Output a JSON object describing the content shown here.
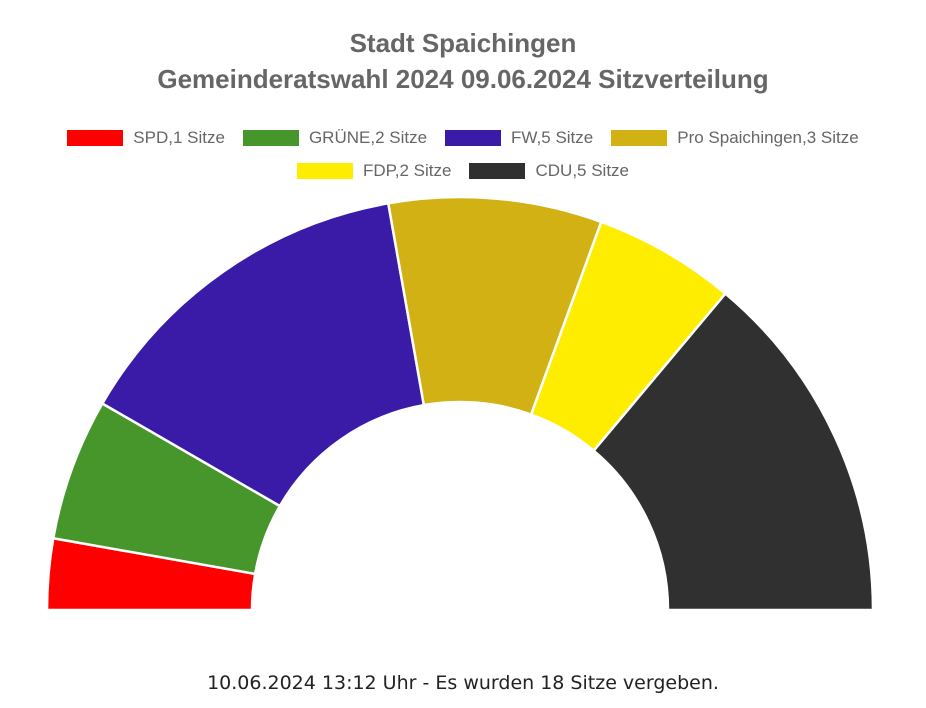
{
  "chart_data": {
    "type": "pie",
    "subtype": "semicircle-parliament",
    "title": "Stadt Spaichingen",
    "subtitle": "Gemeinderatswahl 2024 09.06.2024 Sitzverteilung",
    "legend_position": "top",
    "total_seats": 18,
    "series": [
      {
        "name": "SPD",
        "value": 1,
        "label": "SPD,1 Sitze",
        "color": "#ff0000"
      },
      {
        "name": "GRÜNE",
        "value": 2,
        "label": "GRÜNE,2 Sitze",
        "color": "#46962b"
      },
      {
        "name": "FW",
        "value": 5,
        "label": "FW,5 Sitze",
        "color": "#3a1ba8"
      },
      {
        "name": "Pro Spaichingen",
        "value": 3,
        "label": "Pro Spaichingen,3 Sitze",
        "color": "#d1b114"
      },
      {
        "name": "FDP",
        "value": 2,
        "label": "FDP,2 Sitze",
        "color": "#ffed00"
      },
      {
        "name": "CDU",
        "value": 5,
        "label": "CDU,5 Sitze",
        "color": "#313030"
      }
    ]
  },
  "footer_text": "10.06.2024 13:12 Uhr - Es wurden 18 Sitze vergeben."
}
